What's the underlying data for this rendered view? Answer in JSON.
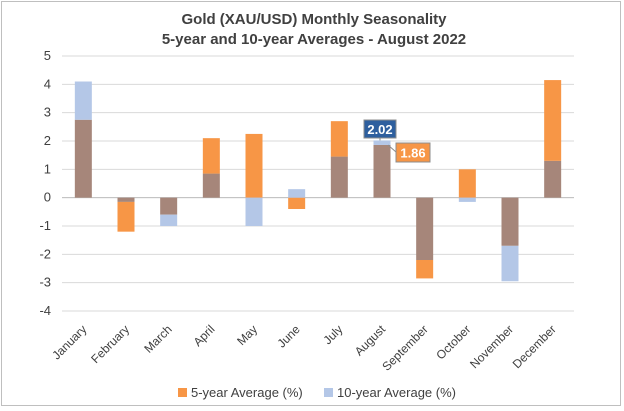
{
  "chart_data": {
    "type": "bar",
    "title": "Gold (XAU/USD) Monthly Seasonality",
    "subtitle": "5-year and 10-year Averages - August 2022",
    "categories": [
      "January",
      "February",
      "March",
      "April",
      "May",
      "June",
      "July",
      "August",
      "September",
      "October",
      "November",
      "December"
    ],
    "series": [
      {
        "name": "5-year Average (%)",
        "color": "#f79646",
        "values": [
          2.75,
          -1.2,
          -0.6,
          2.1,
          2.25,
          -0.4,
          2.7,
          1.86,
          -2.85,
          1.0,
          -1.7,
          4.15
        ]
      },
      {
        "name": "10-year Average (%)",
        "color": "#b4c7e7",
        "values": [
          4.1,
          -0.15,
          -1.0,
          0.85,
          -1.0,
          0.3,
          1.45,
          2.02,
          -2.2,
          -0.15,
          -2.95,
          1.3
        ]
      }
    ],
    "overlap_color": "#a6867a",
    "ylim": [
      -4,
      5
    ],
    "yticks": [
      5,
      4,
      3,
      2,
      1,
      0,
      -1,
      -2,
      -3,
      -4
    ],
    "grid": true,
    "legend": "bottom",
    "annotations": [
      {
        "label": "2.02",
        "series": "10-year Average (%)",
        "category": "August",
        "bg": "#2e5f9e"
      },
      {
        "label": "1.86",
        "series": "5-year Average (%)",
        "category": "August",
        "bg": "#f79646"
      }
    ]
  }
}
